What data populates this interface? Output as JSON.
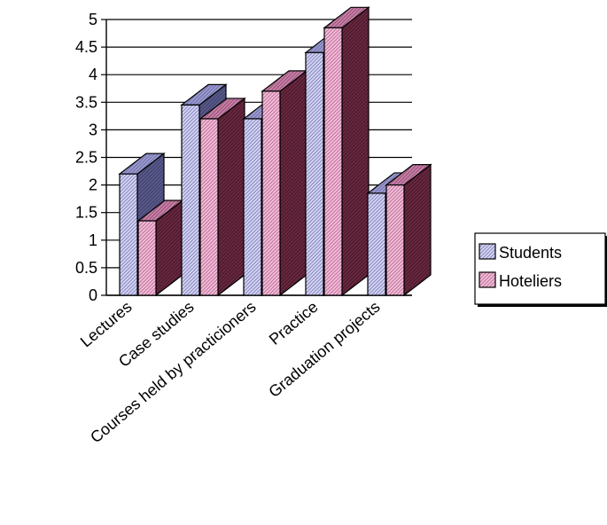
{
  "chart_data": {
    "type": "bar",
    "title": "",
    "xlabel": "",
    "ylabel": "",
    "ylim": [
      0,
      5
    ],
    "yticks": [
      "0",
      "0.5",
      "1",
      "1.5",
      "2",
      "2.5",
      "3",
      "3.5",
      "4",
      "4.5",
      "5"
    ],
    "grid": true,
    "legend_position": "right",
    "categories": [
      "Lectures",
      "Case studies",
      "Courses held by practicioners",
      "Practice",
      "Graduation projects"
    ],
    "series": [
      {
        "name": "Students",
        "values": [
          2.2,
          3.45,
          3.2,
          4.4,
          1.85
        ],
        "color": "#c8c8f0"
      },
      {
        "name": "Hoteliers",
        "values": [
          1.35,
          3.2,
          3.7,
          4.85,
          2.0
        ],
        "color": "#f2b4da"
      }
    ]
  }
}
